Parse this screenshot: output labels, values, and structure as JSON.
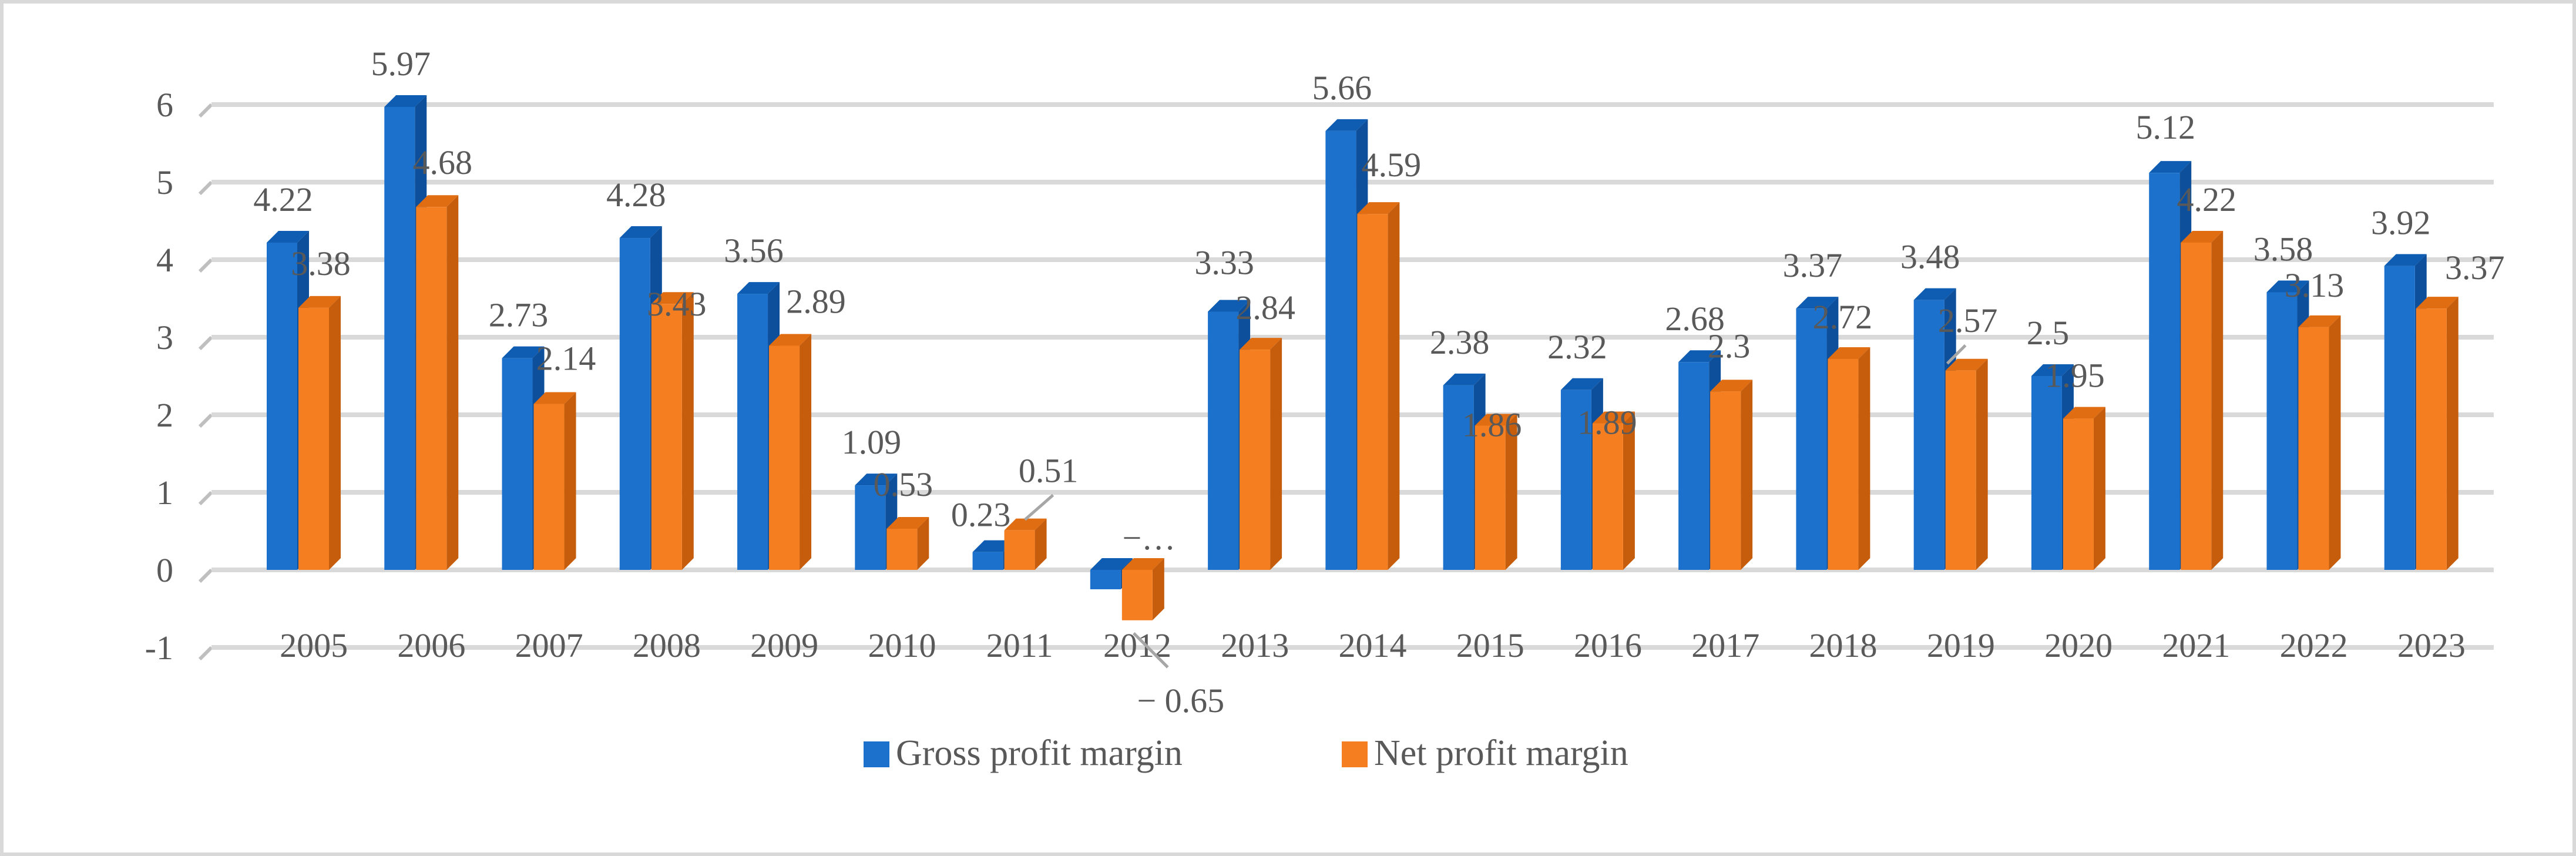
{
  "chart_data": {
    "type": "bar",
    "title": "",
    "xlabel": "",
    "ylabel": "",
    "categories": [
      "2005",
      "2006",
      "2007",
      "2008",
      "2009",
      "2010",
      "2011",
      "2012",
      "2013",
      "2014",
      "2015",
      "2016",
      "2017",
      "2018",
      "2019",
      "2020",
      "2021",
      "2022",
      "2023"
    ],
    "ylim": [
      -1,
      6
    ],
    "yticks": [
      "-1",
      "0",
      "1",
      "2",
      "3",
      "4",
      "5",
      "6"
    ],
    "grid": true,
    "legend_position": "bottom",
    "series": [
      {
        "name": "Gross profit margin",
        "color": "#1b71cc",
        "sideColor": "#0d4f9a",
        "topColor": "#0f5db3",
        "values": [
          4.22,
          5.97,
          2.73,
          4.28,
          3.56,
          1.09,
          0.23,
          -0.25,
          3.33,
          5.66,
          2.38,
          2.32,
          2.68,
          3.37,
          3.48,
          2.5,
          5.12,
          3.58,
          3.92
        ],
        "labels": [
          "4.22",
          "5.97",
          "2.73",
          "4.28",
          "3.56",
          "1.09",
          "0.23",
          "−…",
          "3.33",
          "5.66",
          "2.38",
          "2.32",
          "2.68",
          "3.37",
          "3.48",
          "2.5",
          "5.12",
          "3.58",
          "3.92"
        ]
      },
      {
        "name": "Net profit margin",
        "color": "#f57f20",
        "sideColor": "#c55d0d",
        "topColor": "#e06d12",
        "values": [
          3.38,
          4.68,
          2.14,
          3.43,
          2.89,
          0.53,
          0.51,
          -0.65,
          2.84,
          4.59,
          1.86,
          1.89,
          2.3,
          2.72,
          2.57,
          1.95,
          4.22,
          3.13,
          3.37
        ],
        "labels": [
          "3.38",
          "4.68",
          "2.14",
          "3.43",
          "2.89",
          "0.53",
          "0.51",
          "− 0.65",
          "2.84",
          "4.59",
          "1.86",
          "1.89",
          "2.3",
          "2.72",
          "2.57",
          "1.95",
          "4.22",
          "3.13",
          "3.37"
        ]
      }
    ]
  }
}
